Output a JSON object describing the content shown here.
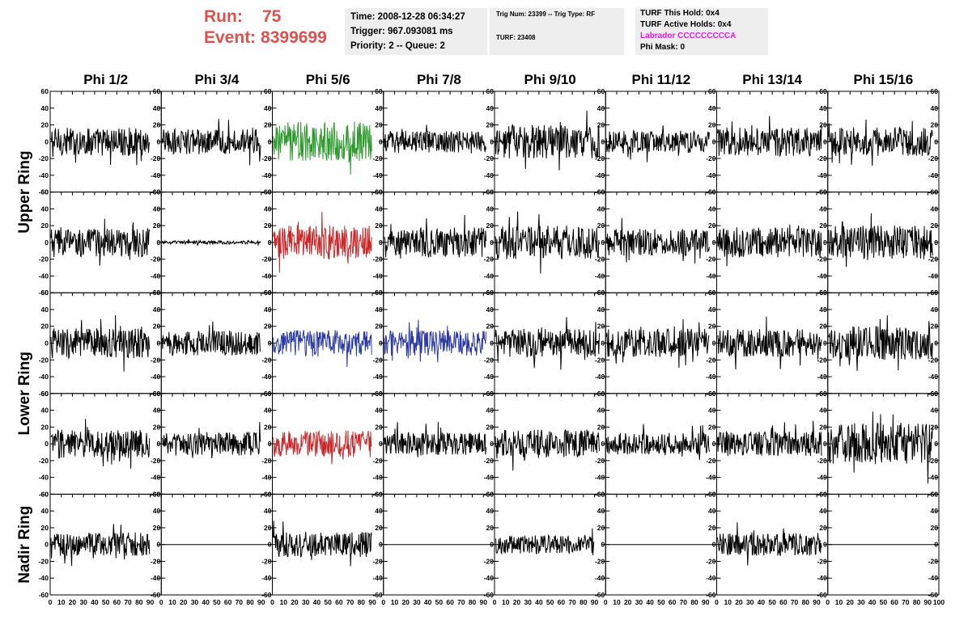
{
  "header": {
    "run_label": "Run:",
    "run_value": "75",
    "event_label": "Event:",
    "event_value": "8399699",
    "time": "Time: 2008-12-28 06:34:27",
    "trigger": "Trigger: 967.093081 ms",
    "priority": "Priority: 2 -- Queue: 2",
    "trig_num": "Trig Num: 23399 -- Trig Type: RF",
    "turf": "TURF: 23408",
    "turf_this_hold": "TURF This Hold: 0x4",
    "turf_active_holds": "TURF Active Holds: 0x4",
    "labrador": "Labrador CCCCCCCCCA",
    "phi_mask": "Phi Mask: 0"
  },
  "chart_data": {
    "type": "line",
    "columns": [
      "Phi 1/2",
      "Phi 3/4",
      "Phi 5/6",
      "Phi 7/8",
      "Phi 9/10",
      "Phi 11/12",
      "Phi 13/14",
      "Phi 15/16"
    ],
    "rows": [
      "Upper Ring",
      "Upper Ring",
      "Lower Ring",
      "Lower Ring",
      "Nadir Ring"
    ],
    "row_labels": [
      "Upper Ring",
      "Lower Ring",
      "Nadir Ring"
    ],
    "ylim": [
      -60,
      60
    ],
    "yticks": [
      -60,
      -40,
      -20,
      0,
      20,
      40,
      60
    ],
    "xlim": [
      0,
      100
    ],
    "xticks": [
      0,
      10,
      20,
      30,
      40,
      50,
      60,
      70,
      80,
      90,
      100
    ],
    "grid": false,
    "colors": {
      "default": "#000000",
      "green": "#2e9a2e",
      "red": "#c8282a",
      "blue": "#2b3aa0",
      "run_text": "#d9534f",
      "labrador_text": "#e020e0",
      "box_bg": "#eeeeee"
    },
    "panel_colors": [
      [
        "default",
        "default",
        "green",
        "default",
        "default",
        "default",
        "default",
        "default"
      ],
      [
        "default",
        "default",
        "red",
        "default",
        "default",
        "default",
        "default",
        "default"
      ],
      [
        "default",
        "default",
        "blue",
        "blue",
        "default",
        "default",
        "default",
        "default"
      ],
      [
        "default",
        "default",
        "red",
        "default",
        "default",
        "default",
        "default",
        "default"
      ],
      [
        "default",
        "default",
        "default",
        "default",
        "default",
        "default",
        "default",
        "default"
      ]
    ],
    "panel_amplitude": [
      [
        17,
        15,
        24,
        13,
        20,
        13,
        17,
        17
      ],
      [
        17,
        2,
        20,
        18,
        20,
        16,
        18,
        20
      ],
      [
        18,
        15,
        16,
        15,
        17,
        17,
        17,
        20
      ],
      [
        17,
        14,
        16,
        14,
        17,
        13,
        15,
        25
      ],
      [
        14,
        0,
        15,
        0,
        11,
        0,
        14,
        0
      ]
    ],
    "panel_extent": [
      [
        90,
        90,
        90,
        93,
        95,
        94,
        95,
        95
      ],
      [
        90,
        90,
        90,
        93,
        95,
        94,
        95,
        95
      ],
      [
        90,
        90,
        90,
        93,
        95,
        94,
        95,
        95
      ],
      [
        90,
        90,
        90,
        93,
        95,
        94,
        95,
        95
      ],
      [
        90,
        100,
        90,
        100,
        90,
        100,
        95,
        100
      ]
    ]
  }
}
